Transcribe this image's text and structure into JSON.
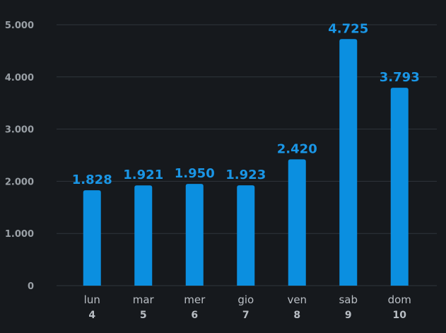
{
  "chart_data": {
    "type": "bar",
    "categories": [
      {
        "day": "lun",
        "date": "4"
      },
      {
        "day": "mar",
        "date": "5"
      },
      {
        "day": "mer",
        "date": "6"
      },
      {
        "day": "gio",
        "date": "7"
      },
      {
        "day": "ven",
        "date": "8"
      },
      {
        "day": "sab",
        "date": "9"
      },
      {
        "day": "dom",
        "date": "10"
      }
    ],
    "values": [
      1828,
      1921,
      1950,
      1923,
      2420,
      4725,
      3793
    ],
    "value_labels": [
      "1.828",
      "1.921",
      "1.950",
      "1.923",
      "2.420",
      "4.725",
      "3.793"
    ],
    "y_ticks": [
      {
        "value": 0,
        "label": "0"
      },
      {
        "value": 1000,
        "label": "1.000"
      },
      {
        "value": 2000,
        "label": "2.000"
      },
      {
        "value": 3000,
        "label": "3.000"
      },
      {
        "value": 4000,
        "label": "4.000"
      },
      {
        "value": 5000,
        "label": "5.000"
      }
    ],
    "ylim": [
      0,
      5000
    ],
    "grid": true,
    "legend": "none",
    "colors": {
      "bar": "#0b8fe0",
      "label": "#1a96e6",
      "background": "#16191d",
      "grid": "#2f353c"
    }
  }
}
